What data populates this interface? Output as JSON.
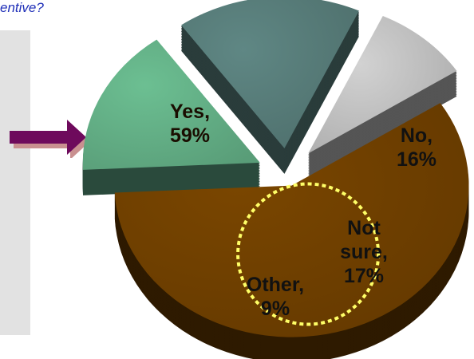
{
  "header": {
    "question_fragment": "entive?"
  },
  "colors": {
    "yes": "#7a4600",
    "no": "#6cbf92",
    "not_sure": "#5f8784",
    "other": "#d2d2d2",
    "arrow": "#6e0a5c",
    "panel": "#e2e2e2",
    "highlight_ring": "#ffff66"
  },
  "icons": {
    "pointer": "arrow-right-icon"
  },
  "chart_data": {
    "type": "pie",
    "style": "3d-exploded",
    "title": "",
    "slices": [
      {
        "key": "yes",
        "label_lines": [
          "Yes,",
          "59%"
        ],
        "value": 59,
        "highlighted": true
      },
      {
        "key": "no",
        "label_lines": [
          "No,",
          "16%"
        ],
        "value": 16
      },
      {
        "key": "not_sure",
        "label_lines": [
          "Not",
          "sure,",
          "17%"
        ],
        "value": 17
      },
      {
        "key": "other",
        "label_lines": [
          "Other,",
          "9%"
        ],
        "value": 9
      }
    ]
  }
}
